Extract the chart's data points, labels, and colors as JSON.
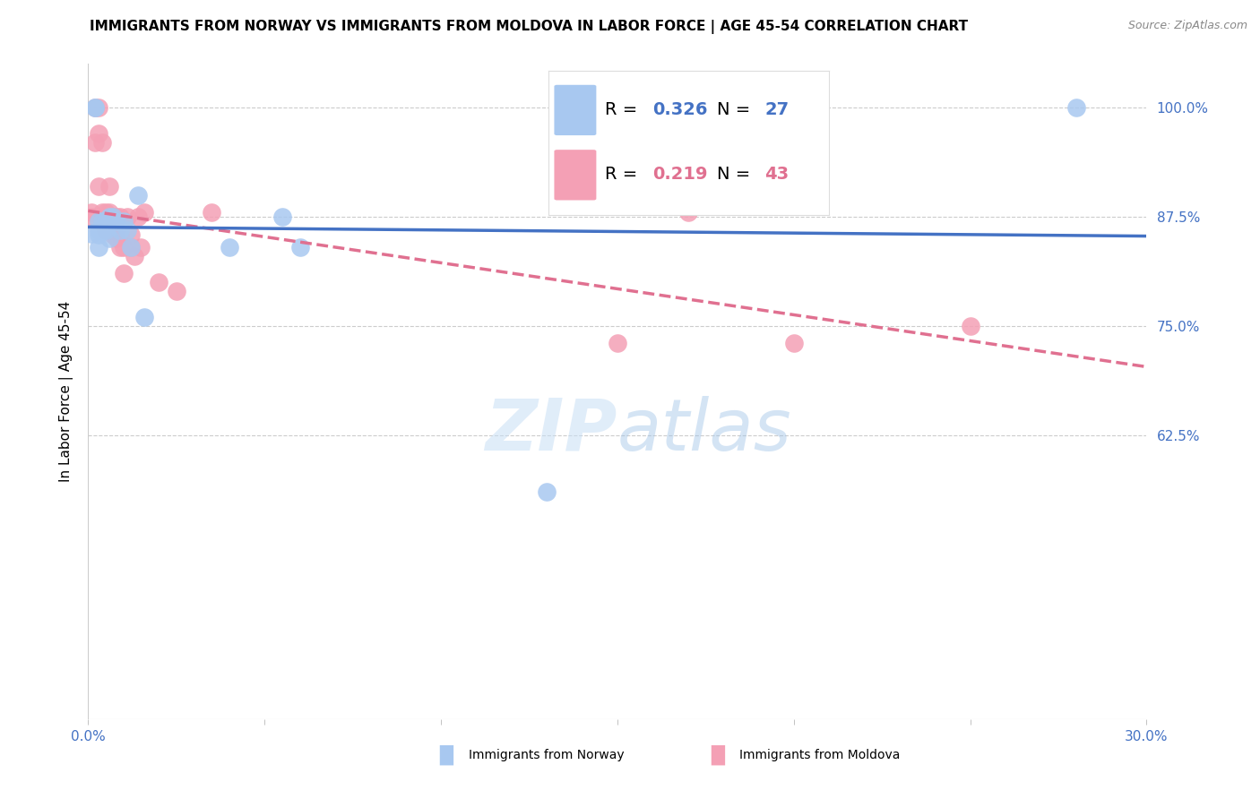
{
  "title": "IMMIGRANTS FROM NORWAY VS IMMIGRANTS FROM MOLDOVA IN LABOR FORCE | AGE 45-54 CORRELATION CHART",
  "source": "Source: ZipAtlas.com",
  "ylabel": "In Labor Force | Age 45-54",
  "norway_label": "Immigrants from Norway",
  "moldova_label": "Immigrants from Moldova",
  "norway_R": 0.326,
  "norway_N": 27,
  "moldova_R": 0.219,
  "moldova_N": 43,
  "xlim": [
    0.0,
    0.3
  ],
  "ylim": [
    0.3,
    1.05
  ],
  "yticks": [
    0.625,
    0.75,
    0.875,
    1.0
  ],
  "ytick_labels": [
    "62.5%",
    "75.0%",
    "87.5%",
    "100.0%"
  ],
  "norway_color": "#a8c8f0",
  "moldova_color": "#f4a0b5",
  "norway_line_color": "#4472c4",
  "moldova_line_color": "#e07090",
  "axis_color": "#4472c4",
  "norway_x": [
    0.001,
    0.002,
    0.002,
    0.003,
    0.003,
    0.003,
    0.003,
    0.004,
    0.004,
    0.005,
    0.005,
    0.006,
    0.006,
    0.006,
    0.007,
    0.008,
    0.009,
    0.01,
    0.011,
    0.012,
    0.014,
    0.016,
    0.04,
    0.055,
    0.06,
    0.28,
    0.13
  ],
  "norway_y": [
    0.856,
    1.0,
    1.0,
    0.87,
    0.86,
    0.855,
    0.84,
    0.87,
    0.86,
    0.87,
    0.86,
    0.875,
    0.87,
    0.85,
    0.875,
    0.87,
    0.86,
    0.87,
    0.86,
    0.84,
    0.9,
    0.76,
    0.84,
    0.875,
    0.84,
    1.0,
    0.56
  ],
  "moldova_x": [
    0.001,
    0.001,
    0.002,
    0.002,
    0.003,
    0.003,
    0.003,
    0.004,
    0.004,
    0.004,
    0.005,
    0.005,
    0.005,
    0.006,
    0.006,
    0.006,
    0.006,
    0.007,
    0.007,
    0.007,
    0.007,
    0.008,
    0.008,
    0.008,
    0.009,
    0.009,
    0.009,
    0.01,
    0.01,
    0.011,
    0.012,
    0.012,
    0.013,
    0.014,
    0.015,
    0.016,
    0.02,
    0.025,
    0.035,
    0.15,
    0.17,
    0.2,
    0.25
  ],
  "moldova_y": [
    0.88,
    0.875,
    1.0,
    0.96,
    1.0,
    0.97,
    0.91,
    0.96,
    0.88,
    0.87,
    0.88,
    0.87,
    0.86,
    0.91,
    0.88,
    0.875,
    0.86,
    0.875,
    0.87,
    0.86,
    0.855,
    0.875,
    0.86,
    0.85,
    0.875,
    0.855,
    0.84,
    0.84,
    0.81,
    0.875,
    0.855,
    0.84,
    0.83,
    0.875,
    0.84,
    0.88,
    0.8,
    0.79,
    0.88,
    0.73,
    0.88,
    0.73,
    0.75
  ]
}
